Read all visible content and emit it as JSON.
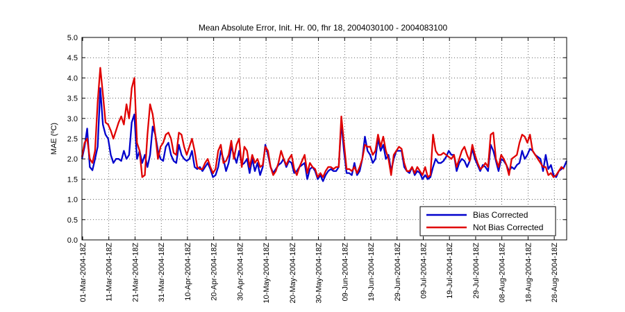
{
  "chart_data": {
    "type": "line",
    "title": "Mean Absolute Error, Init. Hr. 00, fhr 18, 2004030100 - 2004083100",
    "xlabel": "",
    "ylabel": "MAE (ºC)",
    "ylim": [
      0,
      5
    ],
    "yticks": [
      "0.0",
      "0.5",
      "1.0",
      "1.5",
      "2.0",
      "2.5",
      "3.0",
      "3.5",
      "4.0",
      "4.5",
      "5.0"
    ],
    "xticks": [
      "01-Mar-2004-18Z",
      "11-Mar-2004-18Z",
      "21-Mar-2004-18Z",
      "31-Mar-2004-18Z",
      "10-Apr-2004-18Z",
      "20-Apr-2004-18Z",
      "30-Apr-2004-18Z",
      "10-May-2004-18Z",
      "20-May-2004-18Z",
      "30-May-2004-18Z",
      "09-Jun-2004-18Z",
      "19-Jun-2004-18Z",
      "29-Jun-2004-18Z",
      "09-Jul-2004-18Z",
      "19-Jul-2004-18Z",
      "29-Jul-2004-18Z",
      "08-Aug-2004-18Z",
      "18-Aug-2004-18Z",
      "28-Aug-2004-18Z"
    ],
    "x_start": "01-Mar-2004",
    "x_end": "31-Aug-2004",
    "grid": true,
    "legend_position": "bottom-right",
    "series": [
      {
        "name": "Bias Corrected",
        "color": "#0000cc",
        "values": [
          2.0,
          2.3,
          2.75,
          1.8,
          1.72,
          2.0,
          2.3,
          3.75,
          2.85,
          2.6,
          2.5,
          2.1,
          1.9,
          2.0,
          2.0,
          1.95,
          2.2,
          2.0,
          2.1,
          2.9,
          3.1,
          2.0,
          2.2,
          1.9,
          2.1,
          1.8,
          2.1,
          2.8,
          2.6,
          2.2,
          2.0,
          1.95,
          2.3,
          2.4,
          2.1,
          1.95,
          1.9,
          2.35,
          2.1,
          2.0,
          1.95,
          2.0,
          2.2,
          1.8,
          1.75,
          1.8,
          1.7,
          1.8,
          1.9,
          1.75,
          1.55,
          1.6,
          1.8,
          2.2,
          2.0,
          1.7,
          1.9,
          2.3,
          2.1,
          1.9,
          2.2,
          1.85,
          1.9,
          2.0,
          1.65,
          2.0,
          1.7,
          1.9,
          1.6,
          1.8,
          2.35,
          2.1,
          1.8,
          1.65,
          1.75,
          1.85,
          1.9,
          2.0,
          1.8,
          1.95,
          1.9,
          1.65,
          1.7,
          1.8,
          1.85,
          1.9,
          1.5,
          1.75,
          1.8,
          1.7,
          1.5,
          1.6,
          1.45,
          1.6,
          1.7,
          1.75,
          1.7,
          1.7,
          1.8,
          2.9,
          2.2,
          1.65,
          1.65,
          1.6,
          1.9,
          1.6,
          1.7,
          2.0,
          2.55,
          2.2,
          2.1,
          1.9,
          2.0,
          2.5,
          2.2,
          2.35,
          2.0,
          2.1,
          1.7,
          2.0,
          2.2,
          2.2,
          2.2,
          1.8,
          1.7,
          1.65,
          1.8,
          1.6,
          1.7,
          1.65,
          1.5,
          1.6,
          1.5,
          1.55,
          1.8,
          2.0,
          1.9,
          1.9,
          1.95,
          2.05,
          2.2,
          2.1,
          2.1,
          1.7,
          1.9,
          2.0,
          1.95,
          1.8,
          1.95,
          2.25,
          2.0,
          1.85,
          1.7,
          1.85,
          1.8,
          1.7,
          2.35,
          2.2,
          1.95,
          1.7,
          2.0,
          1.95,
          1.85,
          1.7,
          1.8,
          1.75,
          1.85,
          1.9,
          2.2,
          2.0,
          2.1,
          2.25,
          2.2,
          2.1,
          2.05,
          2.0,
          1.7,
          2.1,
          1.75,
          1.85,
          1.6,
          1.55,
          1.7,
          1.75,
          1.8,
          1.95
        ]
      },
      {
        "name": "Not Bias Corrected",
        "color": "#e00000",
        "values": [
          2.05,
          2.4,
          2.5,
          2.0,
          1.9,
          2.2,
          3.4,
          4.25,
          3.6,
          2.9,
          2.85,
          2.7,
          2.5,
          2.7,
          2.9,
          3.05,
          2.85,
          3.35,
          3.0,
          3.75,
          4.0,
          2.4,
          2.2,
          1.55,
          1.6,
          2.6,
          3.35,
          3.1,
          2.6,
          2.0,
          2.3,
          2.4,
          2.6,
          2.65,
          2.5,
          2.15,
          2.1,
          2.65,
          2.6,
          2.3,
          2.1,
          2.3,
          2.5,
          2.2,
          1.8,
          1.75,
          1.75,
          1.9,
          2.0,
          1.8,
          1.65,
          1.75,
          2.2,
          2.35,
          1.9,
          1.95,
          2.1,
          2.45,
          2.0,
          2.35,
          2.5,
          1.8,
          2.3,
          2.2,
          1.8,
          2.1,
          1.9,
          2.0,
          1.8,
          1.85,
          2.3,
          2.2,
          1.8,
          1.6,
          1.7,
          1.9,
          2.2,
          2.0,
          1.85,
          2.0,
          2.1,
          1.75,
          1.6,
          1.8,
          1.95,
          2.1,
          1.65,
          1.9,
          1.8,
          1.75,
          1.55,
          1.65,
          1.55,
          1.7,
          1.8,
          1.8,
          1.75,
          1.8,
          1.8,
          3.05,
          2.4,
          1.75,
          1.75,
          1.7,
          1.8,
          1.65,
          1.8,
          2.0,
          2.35,
          2.3,
          2.3,
          2.1,
          2.2,
          2.6,
          2.3,
          2.55,
          2.2,
          2.0,
          1.6,
          2.1,
          2.2,
          2.3,
          2.25,
          1.9,
          1.7,
          1.7,
          1.8,
          1.65,
          1.8,
          1.7,
          1.6,
          1.8,
          1.55,
          1.6,
          2.6,
          2.2,
          2.1,
          2.1,
          2.15,
          2.1,
          2.05,
          2.0,
          2.1,
          1.8,
          2.0,
          2.2,
          2.3,
          2.1,
          1.95,
          2.35,
          2.1,
          1.9,
          1.75,
          1.8,
          1.9,
          1.8,
          2.6,
          2.65,
          2.0,
          1.8,
          2.1,
          2.0,
          1.85,
          1.6,
          2.0,
          2.05,
          2.1,
          2.4,
          2.6,
          2.55,
          2.4,
          2.6,
          2.2,
          2.1,
          2.0,
          1.9,
          1.8,
          1.8,
          1.6,
          1.65,
          1.55,
          1.6,
          1.7,
          1.8,
          1.75
        ]
      }
    ]
  }
}
